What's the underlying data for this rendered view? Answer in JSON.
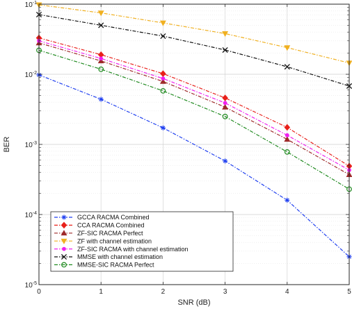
{
  "chart_data": {
    "type": "line",
    "title": "",
    "xlabel": "SNR (dB)",
    "ylabel": "BER",
    "x": [
      0,
      1,
      2,
      3,
      4,
      5
    ],
    "xlim": [
      0,
      5
    ],
    "ylim": [
      1e-05,
      0.1
    ],
    "yscale": "log",
    "grid": true,
    "legend_position": "bottom-left",
    "x_tick_labels": [
      "0",
      "1",
      "2",
      "3",
      "4",
      "5"
    ],
    "y_tick_labels": [
      {
        "base": "10",
        "exp": "-5"
      },
      {
        "base": "10",
        "exp": "-4"
      },
      {
        "base": "10",
        "exp": "-3"
      },
      {
        "base": "10",
        "exp": "-2"
      },
      {
        "base": "10",
        "exp": "-1"
      }
    ],
    "series": [
      {
        "name": "GCCA RACMA Combined",
        "color": "#1f3ff0",
        "marker": "asterisk",
        "values": [
          0.0098,
          0.0044,
          0.00172,
          0.00058,
          0.00016,
          2.5e-05
        ]
      },
      {
        "name": "CCA RACMA Combined",
        "color": "#e8201a",
        "marker": "diamond",
        "values": [
          0.033,
          0.019,
          0.0102,
          0.0046,
          0.00175,
          0.00049
        ]
      },
      {
        "name": "ZF-SIC RACMA Perfect",
        "color": "#9e2a2a",
        "marker": "triangle-up",
        "values": [
          0.028,
          0.0155,
          0.0079,
          0.0034,
          0.00118,
          0.00037
        ]
      },
      {
        "name": "ZF with channel estimation",
        "color": "#f0b020",
        "marker": "triangle-down",
        "values": [
          0.098,
          0.075,
          0.054,
          0.038,
          0.024,
          0.0145
        ]
      },
      {
        "name": "ZF-SIC RACMA with channel estimation",
        "color": "#f020f0",
        "marker": "dot",
        "values": [
          0.03,
          0.0168,
          0.0087,
          0.0039,
          0.00135,
          0.00043
        ]
      },
      {
        "name": "MMSE with channel estimation",
        "color": "#111111",
        "marker": "cross",
        "values": [
          0.071,
          0.05,
          0.035,
          0.0222,
          0.0128,
          0.0068
        ]
      },
      {
        "name": "MMSE-SIC RACMA Perfect",
        "color": "#1f8a1f",
        "marker": "circle",
        "values": [
          0.022,
          0.0118,
          0.0058,
          0.0025,
          0.00078,
          0.00023
        ]
      }
    ]
  }
}
